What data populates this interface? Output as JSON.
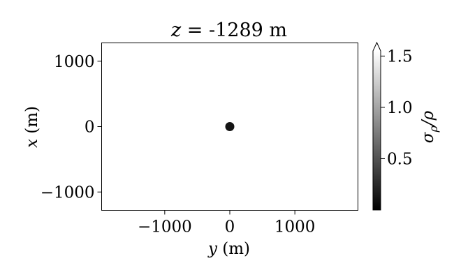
{
  "chart_data": {
    "type": "scatter",
    "title": "z = -1289 m",
    "title_parts": {
      "var": "z",
      "rest": " = -1289 m"
    },
    "xlabel": "y (m)",
    "xlabel_parts": {
      "var": "y",
      "rest": " (m)"
    },
    "ylabel": "x (m)",
    "ylabel_parts": {
      "var": "x",
      "rest": " (m)"
    },
    "xlim": [
      -1970,
      1970
    ],
    "ylim": [
      -1280,
      1280
    ],
    "xticks": [
      -1000,
      0,
      1000
    ],
    "xtick_labels": [
      "−1000",
      "0",
      "1000"
    ],
    "yticks": [
      -1000,
      0,
      1000
    ],
    "ytick_labels": [
      "−1000",
      "0",
      "1000"
    ],
    "grid": false,
    "points": [
      {
        "x": 0,
        "y": 0,
        "value": 0.12
      }
    ],
    "colorbar": {
      "label": "σρ/ρ",
      "label_parts": {
        "num": "σ",
        "num_sub": "ρ",
        "den": "/ρ"
      },
      "range": [
        0.0,
        1.55
      ],
      "ticks": [
        0.5,
        1.0,
        1.5
      ],
      "tick_labels": [
        "0.5",
        "1.0",
        "1.5"
      ],
      "colormap": "gray",
      "extend": "max",
      "color_min": "#000000",
      "color_max": "#ffffff"
    }
  }
}
